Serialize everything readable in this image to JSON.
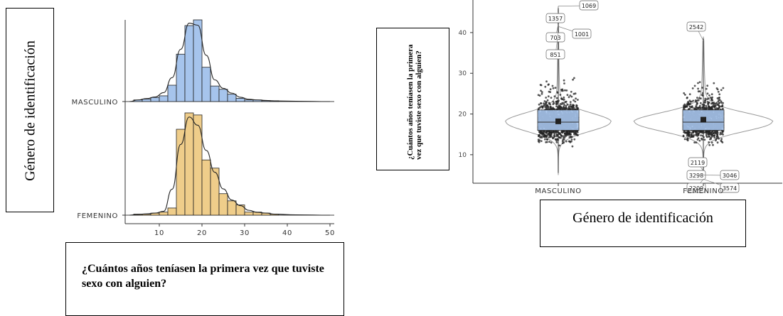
{
  "left_panel": {
    "ylabel": "Género de identificación",
    "xlabel": "¿Cuántos años teníasen la primera vez que tuviste sexo con alguien?"
  },
  "right_panel": {
    "ylabel": "¿Cuántos años teníasen la primera vez que tuviste sexo con alguien?",
    "xlabel": "Género de identificación"
  },
  "chart_data": [
    {
      "type": "histogram-ridgeline",
      "groups": [
        "MASCULINO",
        "FEMENINO"
      ],
      "colors": {
        "MASCULINO": "#a6c4ec",
        "FEMENINO": "#efcd8a"
      },
      "x_ticks": [
        10,
        20,
        30,
        40,
        50
      ],
      "xlim": [
        2,
        51
      ],
      "bins": [
        {
          "x0": 4,
          "x1": 6,
          "masculino": 0.02,
          "femenino": 0.01
        },
        {
          "x0": 6,
          "x1": 8,
          "masculino": 0.03,
          "femenino": 0.01
        },
        {
          "x0": 8,
          "x1": 10,
          "masculino": 0.05,
          "femenino": 0.02
        },
        {
          "x0": 10,
          "x1": 12,
          "masculino": 0.07,
          "femenino": 0.03
        },
        {
          "x0": 12,
          "x1": 14,
          "masculino": 0.2,
          "femenino": 0.07
        },
        {
          "x0": 14,
          "x1": 16,
          "masculino": 0.58,
          "femenino": 0.84
        },
        {
          "x0": 16,
          "x1": 18,
          "masculino": 0.93,
          "femenino": 1.0
        },
        {
          "x0": 18,
          "x1": 20,
          "masculino": 1.0,
          "femenino": 0.98
        },
        {
          "x0": 20,
          "x1": 22,
          "masculino": 0.42,
          "femenino": 0.54
        },
        {
          "x0": 22,
          "x1": 24,
          "masculino": 0.19,
          "femenino": 0.46
        },
        {
          "x0": 24,
          "x1": 26,
          "masculino": 0.15,
          "femenino": 0.21
        },
        {
          "x0": 26,
          "x1": 28,
          "masculino": 0.09,
          "femenino": 0.14
        },
        {
          "x0": 28,
          "x1": 30,
          "masculino": 0.04,
          "femenino": 0.1
        },
        {
          "x0": 30,
          "x1": 32,
          "masculino": 0.02,
          "femenino": 0.03
        },
        {
          "x0": 32,
          "x1": 34,
          "masculino": 0.02,
          "femenino": 0.03
        },
        {
          "x0": 34,
          "x1": 36,
          "masculino": 0.01,
          "femenino": 0.02
        },
        {
          "x0": 36,
          "x1": 38,
          "masculino": 0.01,
          "femenino": 0.01
        }
      ]
    },
    {
      "type": "box-violin",
      "categories": [
        "MASCULINO",
        "FEMENINO"
      ],
      "y_ticks": [
        10,
        20,
        30,
        40
      ],
      "ylim": [
        3,
        48
      ],
      "box_color": "#a6c4ec",
      "series": [
        {
          "name": "MASCULINO",
          "q1": 16,
          "median": 18,
          "q3": 21,
          "mean": 18.2,
          "whisker_low": 10,
          "whisker_high": 28
        },
        {
          "name": "FEMENINO",
          "q1": 16,
          "median": 18,
          "q3": 21,
          "mean": 18.6,
          "whisker_low": 10,
          "whisker_high": 28
        }
      ],
      "outlier_labels": [
        {
          "group": "MASCULINO",
          "label": "1069",
          "y": 46.5
        },
        {
          "group": "MASCULINO",
          "label": "1357",
          "y": 45
        },
        {
          "group": "MASCULINO",
          "label": "703",
          "y": 42
        },
        {
          "group": "MASCULINO",
          "label": "1001",
          "y": 41.5
        },
        {
          "group": "MASCULINO",
          "label": "851",
          "y": 40
        },
        {
          "group": "FEMENINO",
          "label": "2542",
          "y": 38
        },
        {
          "group": "FEMENINO",
          "label": "2119",
          "y": 6
        },
        {
          "group": "FEMENINO",
          "label": "3298",
          "y": 5
        },
        {
          "group": "FEMENINO",
          "label": "3046",
          "y": 5
        },
        {
          "group": "FEMENINO",
          "label": "2209",
          "y": 4
        },
        {
          "group": "FEMENINO",
          "label": "3574",
          "y": 4
        }
      ]
    }
  ]
}
